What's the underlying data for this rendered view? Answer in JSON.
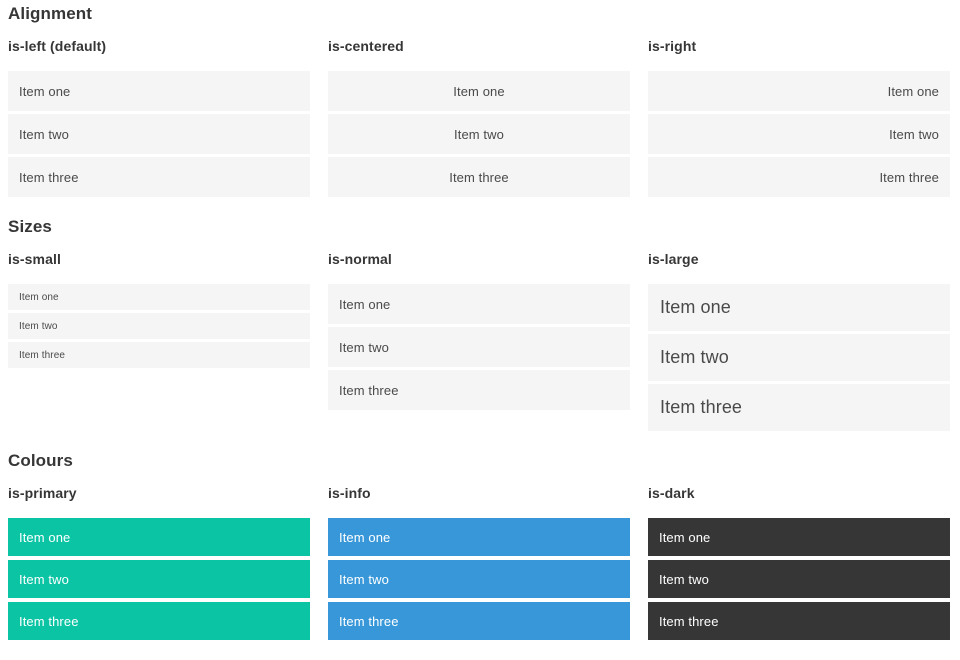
{
  "colors": {
    "primary": "#0ac4a4",
    "info": "#3797d8",
    "dark": "#363636",
    "item_bg": "#f5f5f5",
    "item_text": "#4a4a4a",
    "heading_text": "#363636",
    "light_text": "#ffffff"
  },
  "sections": [
    {
      "title": "Alignment",
      "groups": [
        {
          "label": "is-left (default)",
          "items": [
            "Item one",
            "Item two",
            "Item three"
          ]
        },
        {
          "label": "is-centered",
          "items": [
            "Item one",
            "Item two",
            "Item three"
          ]
        },
        {
          "label": "is-right",
          "items": [
            "Item one",
            "Item two",
            "Item three"
          ]
        }
      ]
    },
    {
      "title": "Sizes",
      "groups": [
        {
          "label": "is-small",
          "items": [
            "Item one",
            "Item two",
            "Item three"
          ]
        },
        {
          "label": "is-normal",
          "items": [
            "Item one",
            "Item two",
            "Item three"
          ]
        },
        {
          "label": "is-large",
          "items": [
            "Item one",
            "Item two",
            "Item three"
          ]
        }
      ]
    },
    {
      "title": "Colours",
      "groups": [
        {
          "label": "is-primary",
          "items": [
            "Item one",
            "Item two",
            "Item three"
          ]
        },
        {
          "label": "is-info",
          "items": [
            "Item one",
            "Item two",
            "Item three"
          ]
        },
        {
          "label": "is-dark",
          "items": [
            "Item one",
            "Item two",
            "Item three"
          ]
        }
      ]
    }
  ]
}
